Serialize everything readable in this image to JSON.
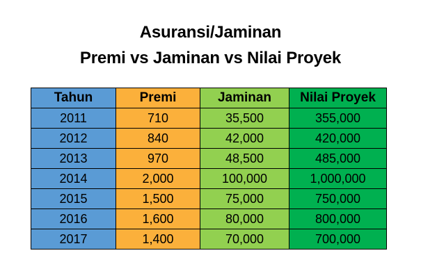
{
  "colors": {
    "tahun": "#5a9bd5",
    "premi": "#fbb03b",
    "jaminan": "#92d050",
    "nilai_proyek": "#00b050"
  },
  "chart_data": {
    "type": "table",
    "title_line1": "Asuransi/Jaminan",
    "title_line2": "Premi vs Jaminan vs Nilai Proyek",
    "columns": [
      "Tahun",
      "Premi",
      "Jaminan",
      "Nilai Proyek"
    ],
    "rows": [
      [
        "2011",
        "710",
        "35,500",
        "355,000"
      ],
      [
        "2012",
        "840",
        "42,000",
        "420,000"
      ],
      [
        "2013",
        "970",
        "48,500",
        "485,000"
      ],
      [
        "2014",
        "2,000",
        "100,000",
        "1,000,000"
      ],
      [
        "2015",
        "1,500",
        "75,000",
        "750,000"
      ],
      [
        "2016",
        "1,600",
        "80,000",
        "800,000"
      ],
      [
        "2017",
        "1,400",
        "70,000",
        "700,000"
      ]
    ]
  }
}
